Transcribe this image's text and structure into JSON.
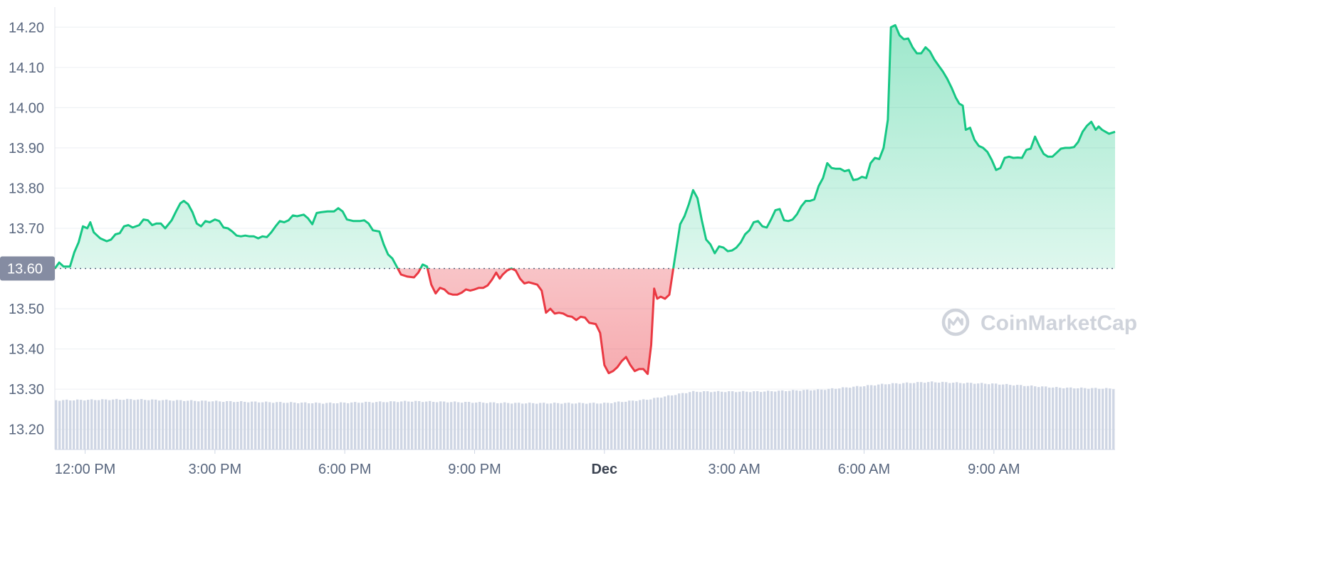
{
  "chart_data": {
    "type": "area",
    "watermark": "CoinMarketCap",
    "baseline": {
      "value": 13.6,
      "label": "13.60"
    },
    "colors": {
      "up": "#16c784",
      "down": "#ea3943",
      "volume": "#cfd6e4",
      "baseline_badge": "#858ca2"
    },
    "ylim": [
      13.15,
      14.25
    ],
    "y_ticks": [
      {
        "value": 13.2,
        "label": "13.20"
      },
      {
        "value": 13.3,
        "label": "13.30"
      },
      {
        "value": 13.4,
        "label": "13.40"
      },
      {
        "value": 13.5,
        "label": "13.50"
      },
      {
        "value": 13.7,
        "label": "13.70"
      },
      {
        "value": 13.8,
        "label": "13.80"
      },
      {
        "value": 13.9,
        "label": "13.90"
      },
      {
        "value": 14.0,
        "label": "14.00"
      },
      {
        "value": 14.1,
        "label": "14.10"
      },
      {
        "value": 14.2,
        "label": "14.20"
      }
    ],
    "xlim": [
      11.3,
      35.8
    ],
    "x_ticks": [
      {
        "value": 12,
        "label": "12:00 PM",
        "bold": false
      },
      {
        "value": 15,
        "label": "3:00 PM",
        "bold": false
      },
      {
        "value": 18,
        "label": "6:00 PM",
        "bold": false
      },
      {
        "value": 21,
        "label": "9:00 PM",
        "bold": false
      },
      {
        "value": 24,
        "label": "Dec",
        "bold": true
      },
      {
        "value": 27,
        "label": "3:00 AM",
        "bold": false
      },
      {
        "value": 30,
        "label": "6:00 AM",
        "bold": false
      },
      {
        "value": 33,
        "label": "9:00 AM",
        "bold": false
      }
    ],
    "series": [
      {
        "type": "price",
        "points": [
          [
            11.3,
            13.6
          ],
          [
            11.4,
            13.615
          ],
          [
            11.5,
            13.605
          ],
          [
            11.65,
            13.605
          ],
          [
            11.75,
            13.64
          ],
          [
            11.85,
            13.665
          ],
          [
            11.95,
            13.705
          ],
          [
            12.05,
            13.7
          ],
          [
            12.12,
            13.715
          ],
          [
            12.2,
            13.69
          ],
          [
            12.35,
            13.675
          ],
          [
            12.5,
            13.668
          ],
          [
            12.6,
            13.672
          ],
          [
            12.7,
            13.685
          ],
          [
            12.8,
            13.688
          ],
          [
            12.9,
            13.705
          ],
          [
            13.0,
            13.708
          ],
          [
            13.1,
            13.702
          ],
          [
            13.25,
            13.708
          ],
          [
            13.35,
            13.722
          ],
          [
            13.45,
            13.72
          ],
          [
            13.55,
            13.708
          ],
          [
            13.65,
            13.712
          ],
          [
            13.75,
            13.712
          ],
          [
            13.85,
            13.7
          ],
          [
            14.0,
            13.72
          ],
          [
            14.1,
            13.742
          ],
          [
            14.2,
            13.762
          ],
          [
            14.28,
            13.768
          ],
          [
            14.38,
            13.76
          ],
          [
            14.48,
            13.74
          ],
          [
            14.58,
            13.712
          ],
          [
            14.68,
            13.705
          ],
          [
            14.78,
            13.718
          ],
          [
            14.88,
            13.715
          ],
          [
            15.0,
            13.722
          ],
          [
            15.1,
            13.718
          ],
          [
            15.2,
            13.702
          ],
          [
            15.3,
            13.7
          ],
          [
            15.4,
            13.692
          ],
          [
            15.5,
            13.682
          ],
          [
            15.6,
            13.68
          ],
          [
            15.7,
            13.682
          ],
          [
            15.8,
            13.68
          ],
          [
            15.9,
            13.68
          ],
          [
            16.0,
            13.675
          ],
          [
            16.1,
            13.68
          ],
          [
            16.2,
            13.678
          ],
          [
            16.3,
            13.69
          ],
          [
            16.4,
            13.705
          ],
          [
            16.5,
            13.718
          ],
          [
            16.6,
            13.715
          ],
          [
            16.7,
            13.72
          ],
          [
            16.8,
            13.732
          ],
          [
            16.9,
            13.73
          ],
          [
            17.05,
            13.734
          ],
          [
            17.15,
            13.725
          ],
          [
            17.25,
            13.71
          ],
          [
            17.35,
            13.738
          ],
          [
            17.45,
            13.74
          ],
          [
            17.6,
            13.742
          ],
          [
            17.75,
            13.742
          ],
          [
            17.85,
            13.75
          ],
          [
            17.95,
            13.742
          ],
          [
            18.05,
            13.722
          ],
          [
            18.2,
            13.718
          ],
          [
            18.35,
            13.718
          ],
          [
            18.45,
            13.72
          ],
          [
            18.55,
            13.712
          ],
          [
            18.65,
            13.695
          ],
          [
            18.8,
            13.692
          ],
          [
            18.9,
            13.66
          ],
          [
            19.0,
            13.635
          ],
          [
            19.1,
            13.625
          ],
          [
            19.2,
            13.605
          ],
          [
            19.3,
            13.585
          ],
          [
            19.45,
            13.58
          ],
          [
            19.6,
            13.578
          ],
          [
            19.7,
            13.59
          ],
          [
            19.8,
            13.61
          ],
          [
            19.9,
            13.605
          ],
          [
            20.0,
            13.56
          ],
          [
            20.1,
            13.538
          ],
          [
            20.2,
            13.552
          ],
          [
            20.3,
            13.548
          ],
          [
            20.4,
            13.538
          ],
          [
            20.5,
            13.535
          ],
          [
            20.6,
            13.535
          ],
          [
            20.7,
            13.54
          ],
          [
            20.8,
            13.548
          ],
          [
            20.9,
            13.545
          ],
          [
            21.0,
            13.548
          ],
          [
            21.1,
            13.552
          ],
          [
            21.2,
            13.552
          ],
          [
            21.3,
            13.558
          ],
          [
            21.4,
            13.572
          ],
          [
            21.5,
            13.59
          ],
          [
            21.58,
            13.575
          ],
          [
            21.65,
            13.585
          ],
          [
            21.75,
            13.595
          ],
          [
            21.85,
            13.6
          ],
          [
            21.95,
            13.595
          ],
          [
            22.05,
            13.575
          ],
          [
            22.15,
            13.563
          ],
          [
            22.25,
            13.566
          ],
          [
            22.35,
            13.563
          ],
          [
            22.45,
            13.56
          ],
          [
            22.55,
            13.545
          ],
          [
            22.65,
            13.49
          ],
          [
            22.75,
            13.5
          ],
          [
            22.85,
            13.488
          ],
          [
            22.95,
            13.49
          ],
          [
            23.05,
            13.488
          ],
          [
            23.15,
            13.482
          ],
          [
            23.25,
            13.48
          ],
          [
            23.35,
            13.472
          ],
          [
            23.45,
            13.48
          ],
          [
            23.55,
            13.478
          ],
          [
            23.65,
            13.465
          ],
          [
            23.8,
            13.462
          ],
          [
            23.9,
            13.44
          ],
          [
            24.0,
            13.36
          ],
          [
            24.1,
            13.34
          ],
          [
            24.2,
            13.345
          ],
          [
            24.3,
            13.355
          ],
          [
            24.4,
            13.37
          ],
          [
            24.5,
            13.38
          ],
          [
            24.6,
            13.36
          ],
          [
            24.7,
            13.345
          ],
          [
            24.8,
            13.35
          ],
          [
            24.9,
            13.35
          ],
          [
            25.0,
            13.338
          ],
          [
            25.08,
            13.41
          ],
          [
            25.15,
            13.55
          ],
          [
            25.22,
            13.525
          ],
          [
            25.3,
            13.53
          ],
          [
            25.4,
            13.525
          ],
          [
            25.5,
            13.535
          ],
          [
            25.62,
            13.62
          ],
          [
            25.75,
            13.71
          ],
          [
            25.85,
            13.73
          ],
          [
            25.95,
            13.76
          ],
          [
            26.05,
            13.795
          ],
          [
            26.15,
            13.775
          ],
          [
            26.25,
            13.72
          ],
          [
            26.35,
            13.672
          ],
          [
            26.45,
            13.66
          ],
          [
            26.55,
            13.638
          ],
          [
            26.65,
            13.655
          ],
          [
            26.75,
            13.652
          ],
          [
            26.85,
            13.643
          ],
          [
            26.95,
            13.645
          ],
          [
            27.05,
            13.652
          ],
          [
            27.15,
            13.665
          ],
          [
            27.25,
            13.685
          ],
          [
            27.35,
            13.695
          ],
          [
            27.45,
            13.715
          ],
          [
            27.55,
            13.718
          ],
          [
            27.65,
            13.705
          ],
          [
            27.75,
            13.702
          ],
          [
            27.85,
            13.722
          ],
          [
            27.95,
            13.745
          ],
          [
            28.05,
            13.748
          ],
          [
            28.15,
            13.72
          ],
          [
            28.25,
            13.718
          ],
          [
            28.35,
            13.722
          ],
          [
            28.45,
            13.735
          ],
          [
            28.55,
            13.755
          ],
          [
            28.65,
            13.768
          ],
          [
            28.75,
            13.768
          ],
          [
            28.85,
            13.772
          ],
          [
            28.95,
            13.805
          ],
          [
            29.05,
            13.825
          ],
          [
            29.15,
            13.862
          ],
          [
            29.25,
            13.85
          ],
          [
            29.35,
            13.848
          ],
          [
            29.45,
            13.848
          ],
          [
            29.55,
            13.842
          ],
          [
            29.65,
            13.845
          ],
          [
            29.75,
            13.82
          ],
          [
            29.85,
            13.822
          ],
          [
            29.95,
            13.828
          ],
          [
            30.05,
            13.825
          ],
          [
            30.15,
            13.862
          ],
          [
            30.25,
            13.875
          ],
          [
            30.35,
            13.872
          ],
          [
            30.45,
            13.9
          ],
          [
            30.55,
            13.97
          ],
          [
            30.62,
            14.2
          ],
          [
            30.72,
            14.205
          ],
          [
            30.82,
            14.18
          ],
          [
            30.92,
            14.17
          ],
          [
            31.02,
            14.172
          ],
          [
            31.12,
            14.15
          ],
          [
            31.22,
            14.135
          ],
          [
            31.32,
            14.135
          ],
          [
            31.42,
            14.15
          ],
          [
            31.52,
            14.14
          ],
          [
            31.62,
            14.12
          ],
          [
            31.72,
            14.105
          ],
          [
            31.82,
            14.09
          ],
          [
            31.92,
            14.072
          ],
          [
            32.02,
            14.05
          ],
          [
            32.12,
            14.025
          ],
          [
            32.2,
            14.01
          ],
          [
            32.28,
            14.005
          ],
          [
            32.35,
            13.945
          ],
          [
            32.45,
            13.95
          ],
          [
            32.55,
            13.92
          ],
          [
            32.65,
            13.905
          ],
          [
            32.75,
            13.9
          ],
          [
            32.85,
            13.89
          ],
          [
            32.95,
            13.87
          ],
          [
            33.05,
            13.845
          ],
          [
            33.15,
            13.85
          ],
          [
            33.25,
            13.875
          ],
          [
            33.35,
            13.878
          ],
          [
            33.45,
            13.875
          ],
          [
            33.55,
            13.876
          ],
          [
            33.65,
            13.875
          ],
          [
            33.75,
            13.895
          ],
          [
            33.85,
            13.898
          ],
          [
            33.95,
            13.928
          ],
          [
            34.05,
            13.905
          ],
          [
            34.15,
            13.885
          ],
          [
            34.25,
            13.878
          ],
          [
            34.35,
            13.878
          ],
          [
            34.45,
            13.888
          ],
          [
            34.55,
            13.898
          ],
          [
            34.65,
            13.9
          ],
          [
            34.75,
            13.9
          ],
          [
            34.85,
            13.902
          ],
          [
            34.95,
            13.915
          ],
          [
            35.05,
            13.94
          ],
          [
            35.15,
            13.955
          ],
          [
            35.25,
            13.965
          ],
          [
            35.35,
            13.945
          ],
          [
            35.42,
            13.953
          ],
          [
            35.5,
            13.945
          ],
          [
            35.58,
            13.94
          ],
          [
            35.66,
            13.935
          ],
          [
            35.74,
            13.938
          ],
          [
            35.8,
            13.94
          ]
        ]
      },
      {
        "type": "volume",
        "anchors": [
          [
            11.3,
            0.255
          ],
          [
            13.0,
            0.26
          ],
          [
            15.0,
            0.25
          ],
          [
            17.5,
            0.24
          ],
          [
            19.5,
            0.25
          ],
          [
            22.0,
            0.24
          ],
          [
            24.0,
            0.24
          ],
          [
            25.0,
            0.26
          ],
          [
            26.0,
            0.3
          ],
          [
            27.5,
            0.3
          ],
          [
            29.0,
            0.31
          ],
          [
            30.5,
            0.34
          ],
          [
            31.5,
            0.35
          ],
          [
            33.0,
            0.34
          ],
          [
            34.5,
            0.32
          ],
          [
            35.8,
            0.315
          ]
        ]
      }
    ]
  }
}
